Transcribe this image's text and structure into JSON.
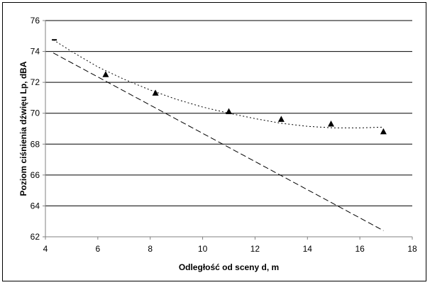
{
  "chart_data": {
    "type": "scatter",
    "xlabel": "Odległość od sceny d, m",
    "ylabel": "Poziom ciśnienia dźwięu Lp, dBA",
    "xlim": [
      4,
      18
    ],
    "ylim": [
      62,
      76
    ],
    "x_ticks": [
      "4",
      "6",
      "8",
      "10",
      "12",
      "14",
      "16",
      "18"
    ],
    "y_ticks": [
      "62",
      "64",
      "66",
      "68",
      "70",
      "72",
      "74",
      "76"
    ],
    "grid": "horizontal",
    "legend": "none",
    "series": [
      {
        "kind": "markers",
        "marker": "triangle",
        "color": "#000000",
        "x": [
          6.3,
          8.2,
          11.0,
          13.0,
          14.9,
          16.9
        ],
        "y": [
          72.5,
          71.3,
          70.1,
          69.6,
          69.3,
          68.8
        ]
      },
      {
        "kind": "dotted-trend",
        "color": "#000000",
        "x": [
          4.3,
          5.0,
          6.0,
          7.0,
          8.0,
          9.0,
          10.0,
          11.0,
          12.0,
          13.0,
          14.0,
          15.0,
          16.0,
          16.9
        ],
        "y": [
          74.75,
          74.0,
          73.0,
          72.2,
          71.5,
          70.9,
          70.4,
          70.0,
          69.65,
          69.35,
          69.15,
          69.05,
          69.05,
          69.1
        ]
      },
      {
        "kind": "dashed-trend",
        "color": "#000000",
        "x": [
          4.3,
          16.9
        ],
        "y": [
          73.9,
          62.4
        ]
      }
    ],
    "colors": {
      "grid": "#000000",
      "axis": "#808080",
      "markers": "#000000"
    }
  }
}
